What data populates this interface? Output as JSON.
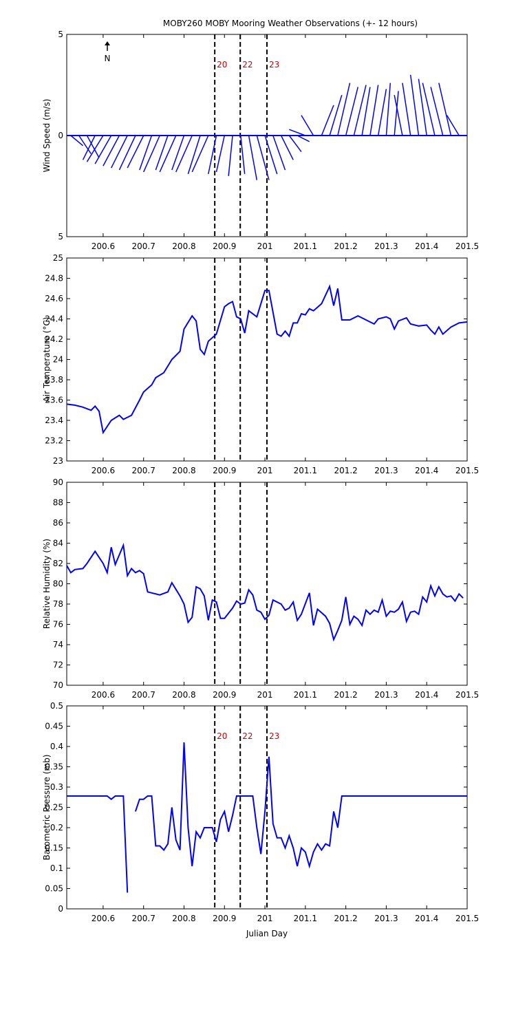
{
  "chart_data": [
    {
      "type": "stick",
      "title": "MOBY260 MOBY Mooring Weather Observations (+- 12 hours)",
      "ylabel": "Wind Speed (m/s)",
      "annotation": "N",
      "color": "#0000ff",
      "xlim": [
        200.51,
        201.5
      ],
      "xticks": [
        200.6,
        200.7,
        200.8,
        200.9,
        201,
        201.1,
        201.2,
        201.3,
        201.4,
        201.5
      ],
      "ylim": [
        -5,
        5
      ],
      "yticks": [
        {
          "value": -5,
          "label": "5"
        },
        0,
        5
      ],
      "vlines": [
        200.876,
        200.939,
        201.005
      ],
      "vline_labels": [
        "20",
        "22",
        "23"
      ],
      "x": [
        200.52,
        200.54,
        200.56,
        200.58,
        200.6,
        200.62,
        200.64,
        200.66,
        200.68,
        200.7,
        200.72,
        200.74,
        200.76,
        200.78,
        200.8,
        200.82,
        200.84,
        200.86,
        200.88,
        200.9,
        200.92,
        200.94,
        200.96,
        200.98,
        201,
        201.02,
        201.04,
        201.06,
        201.08,
        201.1,
        201.12,
        201.14,
        201.16,
        201.18,
        201.2,
        201.22,
        201.24,
        201.26,
        201.28,
        201.3,
        201.32,
        201.34,
        201.36,
        201.38,
        201.4,
        201.42,
        201.44,
        201.46,
        201.48
      ],
      "dx": [
        0.03,
        0.03,
        0.03,
        -0.03,
        -0.04,
        -0.04,
        -0.04,
        -0.04,
        -0.04,
        -0.04,
        -0.03,
        -0.04,
        -0.03,
        -0.04,
        -0.03,
        -0.04,
        -0.03,
        -0.04,
        -0.02,
        -0.02,
        -0.01,
        0.01,
        0.02,
        0.03,
        0.03,
        0.03,
        0.03,
        0.03,
        0.03,
        -0.04,
        -0.03,
        0.03,
        0.03,
        0.03,
        0.03,
        0.03,
        0.02,
        0.02,
        0.02,
        0.01,
        0.01,
        -0.02,
        -0.02,
        -0.02,
        -0.02,
        -0.03,
        -0.03,
        -0.03,
        -0.03
      ],
      "values": [
        -0.5,
        -0.9,
        -1.1,
        -1.2,
        -1.3,
        -1.4,
        -1.5,
        -1.6,
        -1.7,
        -1.6,
        -1.7,
        -1.8,
        -1.7,
        -1.8,
        -1.7,
        -1.8,
        -1.9,
        -1.8,
        -1.9,
        -1.8,
        -2.0,
        -1.9,
        -2.2,
        -2.2,
        -1.9,
        -1.7,
        -1.2,
        -0.8,
        -0.3,
        0.3,
        1.0,
        1.5,
        2.0,
        2.6,
        2.4,
        2.5,
        2.4,
        2.5,
        2.3,
        2.6,
        2.2,
        2.0,
        2.6,
        3.0,
        2.8,
        2.6,
        2.4,
        2.6,
        1.0
      ]
    },
    {
      "type": "line",
      "ylabel": "Air Temperature (°C)",
      "color": "#0000ff",
      "xlim": [
        200.51,
        201.5
      ],
      "xticks": [
        200.6,
        200.7,
        200.8,
        200.9,
        201,
        201.1,
        201.2,
        201.3,
        201.4,
        201.5
      ],
      "ylim": [
        23,
        25
      ],
      "yticks": [
        23,
        23.2,
        23.4,
        23.6,
        23.8,
        24,
        24.2,
        24.4,
        24.6,
        24.8,
        25
      ],
      "vlines": [
        200.876,
        200.939,
        201.005
      ],
      "x": [
        200.51,
        200.53,
        200.55,
        200.57,
        200.58,
        200.59,
        200.6,
        200.62,
        200.64,
        200.65,
        200.67,
        200.69,
        200.7,
        200.72,
        200.73,
        200.75,
        200.77,
        200.79,
        200.8,
        200.82,
        200.83,
        200.84,
        200.85,
        200.86,
        200.88,
        200.9,
        200.91,
        200.92,
        200.93,
        200.94,
        200.95,
        200.96,
        200.98,
        200.99,
        201,
        201.01,
        201.03,
        201.04,
        201.05,
        201.06,
        201.07,
        201.08,
        201.09,
        201.1,
        201.11,
        201.12,
        201.14,
        201.16,
        201.17,
        201.18,
        201.19,
        201.21,
        201.23,
        201.25,
        201.27,
        201.28,
        201.3,
        201.31,
        201.32,
        201.33,
        201.35,
        201.36,
        201.38,
        201.4,
        201.41,
        201.42,
        201.43,
        201.44,
        201.46,
        201.48,
        201.5
      ],
      "values": [
        23.56,
        23.55,
        23.53,
        23.5,
        23.54,
        23.49,
        23.28,
        23.4,
        23.45,
        23.41,
        23.45,
        23.6,
        23.68,
        23.75,
        23.82,
        23.87,
        24.0,
        24.08,
        24.3,
        24.43,
        24.38,
        24.1,
        24.05,
        24.18,
        24.25,
        24.52,
        24.55,
        24.57,
        24.42,
        24.4,
        24.26,
        24.48,
        24.42,
        24.55,
        24.68,
        24.68,
        24.25,
        24.23,
        24.28,
        24.23,
        24.36,
        24.36,
        24.45,
        24.44,
        24.5,
        24.48,
        24.55,
        24.72,
        24.53,
        24.7,
        24.39,
        24.39,
        24.43,
        24.39,
        24.35,
        24.4,
        24.42,
        24.4,
        24.3,
        24.38,
        24.41,
        24.35,
        24.33,
        24.34,
        24.29,
        24.25,
        24.32,
        24.25,
        24.32,
        24.36,
        24.37
      ]
    },
    {
      "type": "line",
      "ylabel": "Relative Humidity (%)",
      "color": "#0000ff",
      "xlim": [
        200.51,
        201.5
      ],
      "xticks": [
        200.6,
        200.7,
        200.8,
        200.9,
        201,
        201.1,
        201.2,
        201.3,
        201.4,
        201.5
      ],
      "ylim": [
        70,
        90
      ],
      "yticks": [
        70,
        72,
        74,
        76,
        78,
        80,
        82,
        84,
        86,
        88,
        90
      ],
      "vlines": [
        200.876,
        200.939,
        201.005
      ],
      "x": [
        200.51,
        200.52,
        200.53,
        200.55,
        200.56,
        200.58,
        200.6,
        200.61,
        200.62,
        200.63,
        200.65,
        200.66,
        200.67,
        200.68,
        200.69,
        200.7,
        200.71,
        200.74,
        200.76,
        200.77,
        200.79,
        200.8,
        200.81,
        200.82,
        200.83,
        200.84,
        200.85,
        200.86,
        200.87,
        200.88,
        200.89,
        200.9,
        200.92,
        200.93,
        200.94,
        200.95,
        200.96,
        200.97,
        200.98,
        200.99,
        201,
        201.01,
        201.02,
        201.04,
        201.05,
        201.06,
        201.07,
        201.08,
        201.09,
        201.11,
        201.12,
        201.13,
        201.15,
        201.16,
        201.17,
        201.18,
        201.19,
        201.2,
        201.21,
        201.22,
        201.23,
        201.24,
        201.25,
        201.26,
        201.27,
        201.28,
        201.29,
        201.3,
        201.31,
        201.32,
        201.33,
        201.34,
        201.35,
        201.36,
        201.37,
        201.38,
        201.39,
        201.4,
        201.41,
        201.42,
        201.43,
        201.44,
        201.45,
        201.46,
        201.47,
        201.48,
        201.49
      ],
      "values": [
        81.8,
        81.1,
        81.4,
        81.5,
        82,
        83.2,
        82,
        81.1,
        83.6,
        81.9,
        83.8,
        80.8,
        81.5,
        81.1,
        81.3,
        81.0,
        79.2,
        78.9,
        79.2,
        80.1,
        78.8,
        78.0,
        76.2,
        76.7,
        79.7,
        79.5,
        78.8,
        76.4,
        78.4,
        78.2,
        76.6,
        76.6,
        77.6,
        78.3,
        78.0,
        78.1,
        79.4,
        78.9,
        77.4,
        77.2,
        76.5,
        76.9,
        78.4,
        78.0,
        77.4,
        77.6,
        78.2,
        76.4,
        77,
        79.1,
        75.9,
        77.5,
        76.8,
        76.1,
        74.5,
        75.4,
        76.4,
        78.7,
        76.0,
        76.8,
        76.5,
        75.9,
        77.4,
        77.0,
        77.4,
        77.2,
        78.4,
        76.8,
        77.3,
        77.2,
        77.5,
        78.2,
        76.3,
        77.2,
        77.3,
        77.0,
        78.7,
        78.2,
        79.8,
        78.8,
        79.7,
        79.0,
        78.7,
        78.8,
        78.3,
        79.0,
        78.6
      ]
    },
    {
      "type": "line",
      "ylabel": "Barometric Pressure (mb)",
      "xlabel": "Julian Day",
      "color": "#0000ff",
      "xlim": [
        200.51,
        201.5
      ],
      "xticks": [
        200.6,
        200.7,
        200.8,
        200.9,
        201,
        201.1,
        201.2,
        201.3,
        201.4,
        201.5
      ],
      "ylim": [
        0,
        0.5
      ],
      "yticks": [
        0,
        0.05,
        0.1,
        0.15,
        0.2,
        0.25,
        0.3,
        0.35,
        0.4,
        0.45,
        0.5
      ],
      "vlines": [
        200.876,
        200.939,
        201.005
      ],
      "vline_labels": [
        "20",
        "22",
        "23"
      ],
      "x": [
        200.51,
        200.61,
        200.62,
        200.63,
        200.65,
        200.66,
        200.67,
        200.68,
        200.69,
        200.7,
        200.71,
        200.72,
        200.73,
        200.74,
        200.75,
        200.76,
        200.77,
        200.78,
        200.79,
        200.8,
        200.81,
        200.82,
        200.83,
        200.84,
        200.85,
        200.86,
        200.87,
        200.88,
        200.89,
        200.9,
        200.91,
        200.92,
        200.93,
        200.96,
        200.97,
        200.98,
        200.99,
        201,
        201.01,
        201.02,
        201.03,
        201.04,
        201.05,
        201.06,
        201.07,
        201.08,
        201.09,
        201.1,
        201.11,
        201.12,
        201.13,
        201.14,
        201.15,
        201.16,
        201.17,
        201.18,
        201.19,
        201.5
      ],
      "values": [
        0.278,
        0.278,
        0.27,
        0.278,
        0.278,
        0.04,
        null,
        0.24,
        0.27,
        0.27,
        0.278,
        0.278,
        0.155,
        0.155,
        0.145,
        0.16,
        0.25,
        0.17,
        0.145,
        0.41,
        0.2,
        0.105,
        0.19,
        0.175,
        0.2,
        0.2,
        0.2,
        0.165,
        0.22,
        0.24,
        0.19,
        0.23,
        0.278,
        0.278,
        0.278,
        0.2,
        0.135,
        0.24,
        0.375,
        0.21,
        0.175,
        0.175,
        0.15,
        0.18,
        0.15,
        0.105,
        0.15,
        0.14,
        0.105,
        0.14,
        0.16,
        0.145,
        0.16,
        0.155,
        0.24,
        0.2,
        0.278,
        0.278
      ]
    }
  ]
}
